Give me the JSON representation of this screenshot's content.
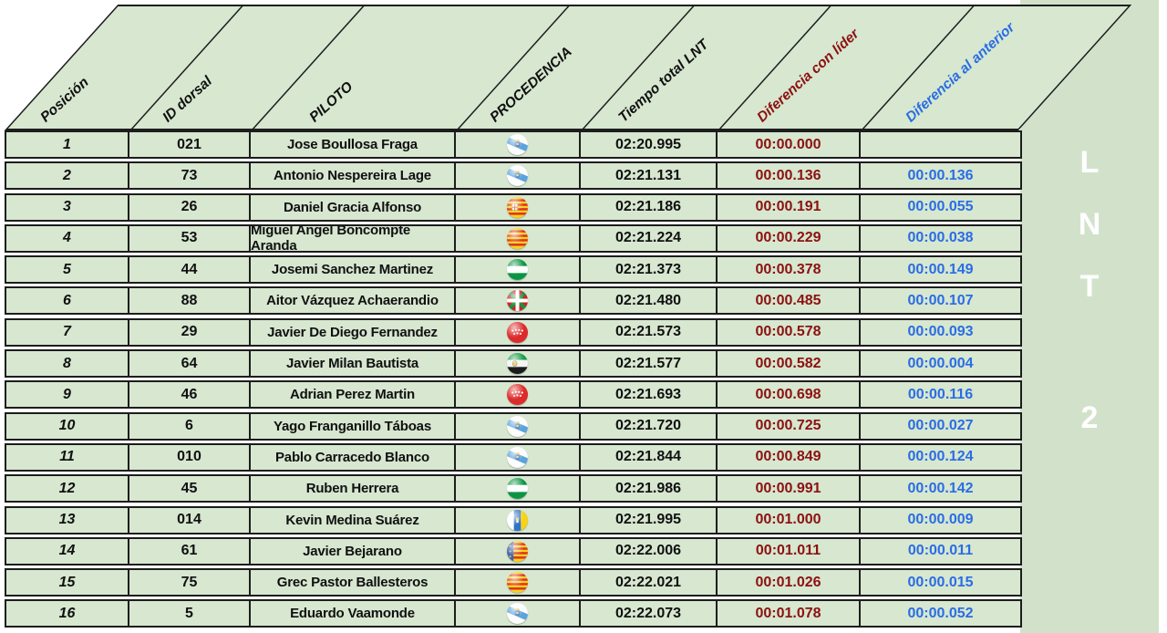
{
  "side_panel": {
    "l1": "L",
    "l2": "N",
    "l3": "T",
    "number": "2"
  },
  "colors": {
    "cell_green": "#d7e7d0",
    "band_green": "#d2e2ca",
    "border": "#1d1d1d",
    "leader_red": "#8c1111",
    "previous_blue": "#2a6de4",
    "panel_text": "#ffffff"
  },
  "table": {
    "columns": [
      {
        "key": "pos",
        "label": "Posición",
        "color": "#101010"
      },
      {
        "key": "dorsal",
        "label": "ID dorsal",
        "color": "#101010"
      },
      {
        "key": "pilot",
        "label": "PILOTO",
        "color": "#101010"
      },
      {
        "key": "origin",
        "label": "PROCEDENCIA",
        "color": "#101010"
      },
      {
        "key": "total",
        "label": "Tiempo total LNT",
        "color": "#101010"
      },
      {
        "key": "dif_leader",
        "label": "Diferencia con líder",
        "color": "#8c1111"
      },
      {
        "key": "dif_prev",
        "label": "Diferencia al anterior",
        "color": "#2a6de4"
      }
    ],
    "rows": [
      {
        "pos": "1",
        "dorsal": "021",
        "pilot": "Jose Boullosa Fraga",
        "flag": "galicia",
        "total": "02:20.995",
        "dif_leader": "00:00.000",
        "dif_prev": ""
      },
      {
        "pos": "2",
        "dorsal": "73",
        "pilot": "Antonio Nespereira Lage",
        "flag": "galicia",
        "total": "02:21.131",
        "dif_leader": "00:00.136",
        "dif_prev": "00:00.136"
      },
      {
        "pos": "3",
        "dorsal": "26",
        "pilot": "Daniel Gracia Alfonso",
        "flag": "aragon",
        "total": "02:21.186",
        "dif_leader": "00:00.191",
        "dif_prev": "00:00.055"
      },
      {
        "pos": "4",
        "dorsal": "53",
        "pilot": "Miguel Angel Boncompte Aranda",
        "flag": "catalonia",
        "total": "02:21.224",
        "dif_leader": "00:00.229",
        "dif_prev": "00:00.038"
      },
      {
        "pos": "5",
        "dorsal": "44",
        "pilot": "Josemi Sanchez Martinez",
        "flag": "andalucia",
        "total": "02:21.373",
        "dif_leader": "00:00.378",
        "dif_prev": "00:00.149"
      },
      {
        "pos": "6",
        "dorsal": "88",
        "pilot": "Aitor Vázquez Achaerandio",
        "flag": "basque",
        "total": "02:21.480",
        "dif_leader": "00:00.485",
        "dif_prev": "00:00.107"
      },
      {
        "pos": "7",
        "dorsal": "29",
        "pilot": "Javier De Diego Fernandez",
        "flag": "madrid",
        "total": "02:21.573",
        "dif_leader": "00:00.578",
        "dif_prev": "00:00.093"
      },
      {
        "pos": "8",
        "dorsal": "64",
        "pilot": "Javier Milan Bautista",
        "flag": "extremadura",
        "total": "02:21.577",
        "dif_leader": "00:00.582",
        "dif_prev": "00:00.004"
      },
      {
        "pos": "9",
        "dorsal": "46",
        "pilot": "Adrian Perez Martin",
        "flag": "madrid",
        "total": "02:21.693",
        "dif_leader": "00:00.698",
        "dif_prev": "00:00.116"
      },
      {
        "pos": "10",
        "dorsal": "6",
        "pilot": "Yago Franganillo Táboas",
        "flag": "galicia",
        "total": "02:21.720",
        "dif_leader": "00:00.725",
        "dif_prev": "00:00.027"
      },
      {
        "pos": "11",
        "dorsal": "010",
        "pilot": "Pablo Carracedo Blanco",
        "flag": "galicia",
        "total": "02:21.844",
        "dif_leader": "00:00.849",
        "dif_prev": "00:00.124"
      },
      {
        "pos": "12",
        "dorsal": "45",
        "pilot": "Ruben Herrera",
        "flag": "andalucia",
        "total": "02:21.986",
        "dif_leader": "00:00.991",
        "dif_prev": "00:00.142"
      },
      {
        "pos": "13",
        "dorsal": "014",
        "pilot": "Kevin Medina Suárez",
        "flag": "canarias",
        "total": "02:21.995",
        "dif_leader": "00:01.000",
        "dif_prev": "00:00.009"
      },
      {
        "pos": "14",
        "dorsal": "61",
        "pilot": "Javier Bejarano",
        "flag": "valencia",
        "total": "02:22.006",
        "dif_leader": "00:01.011",
        "dif_prev": "00:00.011"
      },
      {
        "pos": "15",
        "dorsal": "75",
        "pilot": "Grec Pastor Ballesteros",
        "flag": "catalonia",
        "total": "02:22.021",
        "dif_leader": "00:01.026",
        "dif_prev": "00:00.015"
      },
      {
        "pos": "16",
        "dorsal": "5",
        "pilot": "Eduardo Vaamonde",
        "flag": "galicia",
        "total": "02:22.073",
        "dif_leader": "00:01.078",
        "dif_prev": "00:00.052"
      }
    ]
  }
}
